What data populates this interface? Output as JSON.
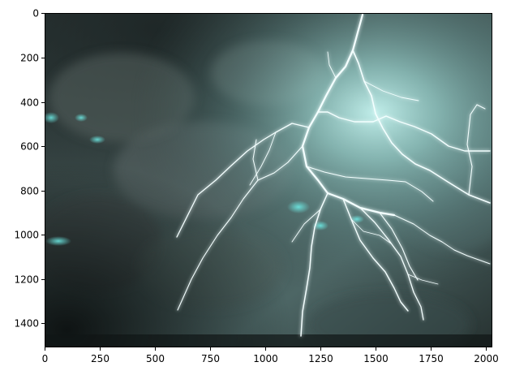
{
  "figure": {
    "image_subject": "lightning",
    "colors": {
      "background": "#ffffff",
      "axis": "#000000",
      "sky_dark": "#1e2a2a",
      "sky_mid": "#4e6565",
      "glow": "#b8f2ee",
      "bolt": "#f4ffff",
      "cyan_patch": "#5fe6e0"
    },
    "axes": {
      "x_ticks": [
        "0",
        "250",
        "500",
        "750",
        "1000",
        "1250",
        "1500",
        "1750",
        "2000"
      ],
      "y_ticks": [
        "0",
        "200",
        "400",
        "600",
        "800",
        "1000",
        "1200",
        "1400"
      ]
    }
  }
}
